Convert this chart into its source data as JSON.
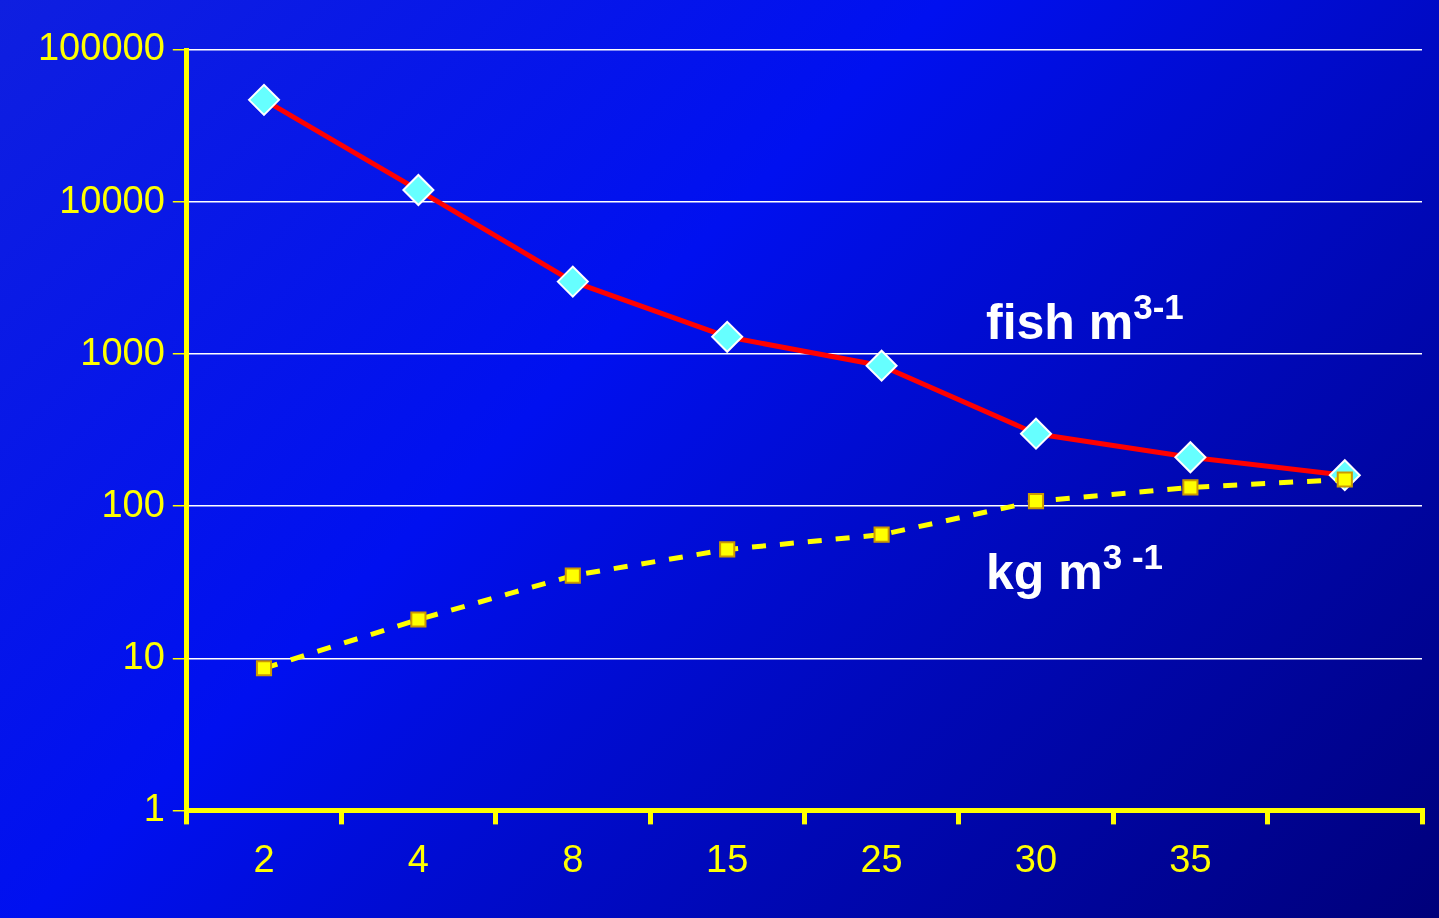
{
  "chart_data": {
    "type": "line",
    "categories": [
      "2",
      "4",
      "8",
      "15",
      "25",
      "30",
      "35",
      null
    ],
    "series": [
      {
        "name": "fish m$^{3-1}$",
        "color": "#ff0000",
        "marker": "diamond",
        "line_style": "solid",
        "values": [
          47000,
          12000,
          3000,
          1300,
          840,
          300,
          210,
          160
        ]
      },
      {
        "name": "kg m$^{3 -1}$",
        "color": "#ffff00",
        "marker": "square",
        "line_style": "dashed",
        "values": [
          8.6,
          18,
          35,
          52,
          65,
          108,
          133,
          150
        ]
      }
    ],
    "log": "y",
    "ylim": [
      1,
      100000
    ],
    "yticks": [
      1,
      10,
      100,
      1000,
      10000,
      100000
    ],
    "grid": "y",
    "legend": false
  }
}
